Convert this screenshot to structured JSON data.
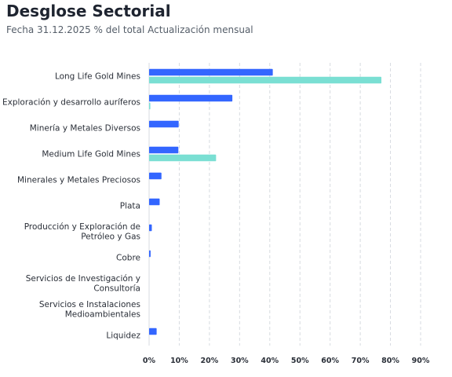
{
  "header": {
    "title": "Desglose Sectorial",
    "subtitle": "Fecha 31.12.2025 % del total Actualización mensual"
  },
  "chart_data": {
    "type": "bar",
    "orientation": "horizontal",
    "title": "Desglose Sectorial",
    "subtitle": "Fecha 31.12.2025 % del total Actualización mensual",
    "xlabel": "",
    "ylabel": "",
    "xlim": [
      0,
      90
    ],
    "x_ticks": [
      "0%",
      "10%",
      "20%",
      "30%",
      "40%",
      "50%",
      "60%",
      "70%",
      "80%",
      "90%"
    ],
    "grid": true,
    "legend": "none",
    "categories": [
      [
        "Long Life Gold Mines"
      ],
      [
        "Exploración y desarrollo auríferos"
      ],
      [
        "Minería y Metales Diversos"
      ],
      [
        "Medium Life Gold Mines"
      ],
      [
        "Minerales y Metales Preciosos"
      ],
      [
        "Plata"
      ],
      [
        "Producción y Exploración de",
        "Petróleo y Gas"
      ],
      [
        "Cobre"
      ],
      [
        "Servicios de Investigación y",
        "Consultoría"
      ],
      [
        "Servicios e Instalaciones",
        "Medioambientales"
      ],
      [
        "Liquidez"
      ]
    ],
    "series": [
      {
        "color": "#3366ff",
        "values": [
          41.0,
          27.6,
          9.8,
          9.7,
          4.1,
          3.5,
          0.9,
          0.5,
          0.0,
          0.0,
          2.5
        ]
      },
      {
        "color": "#7adfd3",
        "values": [
          77.0,
          0.4,
          0,
          22.2,
          0,
          0,
          0,
          0,
          0,
          0,
          0
        ]
      }
    ]
  }
}
